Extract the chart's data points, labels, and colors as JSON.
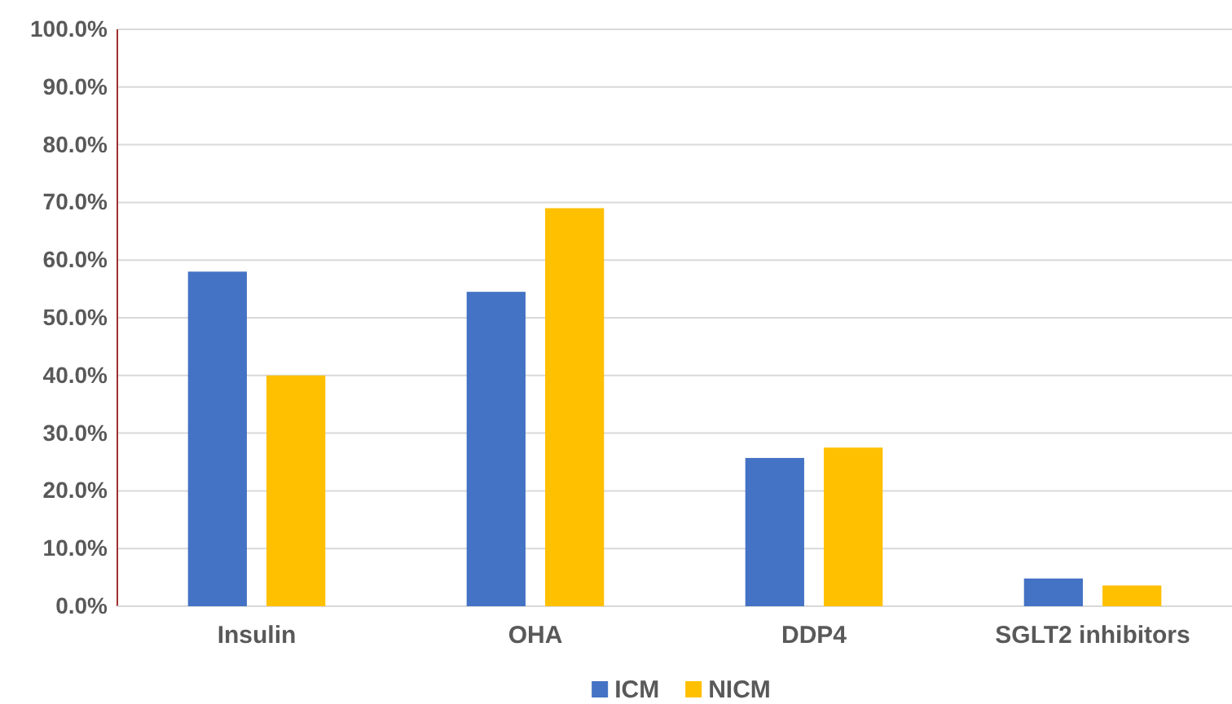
{
  "chart_data": {
    "type": "bar",
    "categories": [
      "Insulin",
      "OHA",
      "DDP4",
      "SGLT2 inhibitors"
    ],
    "series": [
      {
        "name": "ICM",
        "color": "#4472c4",
        "values": [
          58.0,
          54.5,
          25.7,
          4.8
        ]
      },
      {
        "name": "NICM",
        "color": "#ffc000",
        "values": [
          40.0,
          69.0,
          27.5,
          3.6
        ]
      }
    ],
    "ylim": [
      0,
      100
    ],
    "yticks": [
      {
        "value": 0,
        "label": "0.0%"
      },
      {
        "value": 10,
        "label": "10.0%"
      },
      {
        "value": 20,
        "label": "20.0%"
      },
      {
        "value": 30,
        "label": "30.0%"
      },
      {
        "value": 40,
        "label": "40.0%"
      },
      {
        "value": 50,
        "label": "50.0%"
      },
      {
        "value": 60,
        "label": "60.0%"
      },
      {
        "value": 70,
        "label": "70.0%"
      },
      {
        "value": 80,
        "label": "80.0%"
      },
      {
        "value": 90,
        "label": "90.0%"
      },
      {
        "value": 100,
        "label": "100.0%"
      }
    ],
    "grid": "y",
    "legend": "bottom"
  }
}
